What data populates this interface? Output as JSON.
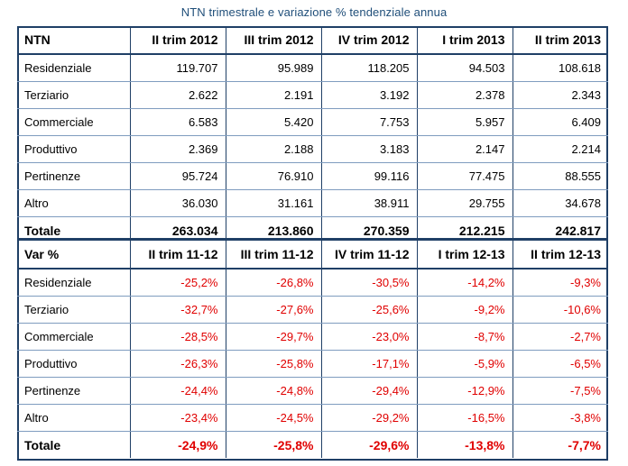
{
  "title": "NTN trimestrale e variazione % tendenziale annua",
  "ntn_table": {
    "header": [
      "NTN",
      "II trim 2012",
      "III trim 2012",
      "IV trim 2012",
      "I trim 2013",
      "II trim 2013"
    ],
    "rows": [
      {
        "label": "Residenziale",
        "values": [
          "119.707",
          "95.989",
          "118.205",
          "94.503",
          "108.618"
        ]
      },
      {
        "label": "Terziario",
        "values": [
          "2.622",
          "2.191",
          "3.192",
          "2.378",
          "2.343"
        ]
      },
      {
        "label": "Commerciale",
        "values": [
          "6.583",
          "5.420",
          "7.753",
          "5.957",
          "6.409"
        ]
      },
      {
        "label": "Produttivo",
        "values": [
          "2.369",
          "2.188",
          "3.183",
          "2.147",
          "2.214"
        ]
      },
      {
        "label": "Pertinenze",
        "values": [
          "95.724",
          "76.910",
          "99.116",
          "77.475",
          "88.555"
        ]
      },
      {
        "label": "Altro",
        "values": [
          "36.030",
          "31.161",
          "38.911",
          "29.755",
          "34.678"
        ]
      }
    ],
    "total": {
      "label": "Totale",
      "values": [
        "263.034",
        "213.860",
        "270.359",
        "212.215",
        "242.817"
      ]
    }
  },
  "var_table": {
    "header": [
      "Var %",
      "II trim 11-12",
      "III trim 11-12",
      "IV trim 11-12",
      "I trim 12-13",
      "II trim 12-13"
    ],
    "rows": [
      {
        "label": "Residenziale",
        "values": [
          "-25,2%",
          "-26,8%",
          "-30,5%",
          "-14,2%",
          "-9,3%"
        ]
      },
      {
        "label": "Terziario",
        "values": [
          "-32,7%",
          "-27,6%",
          "-25,6%",
          "-9,2%",
          "-10,6%"
        ]
      },
      {
        "label": "Commerciale",
        "values": [
          "-28,5%",
          "-29,7%",
          "-23,0%",
          "-8,7%",
          "-2,7%"
        ]
      },
      {
        "label": "Produttivo",
        "values": [
          "-26,3%",
          "-25,8%",
          "-17,1%",
          "-5,9%",
          "-6,5%"
        ]
      },
      {
        "label": "Pertinenze",
        "values": [
          "-24,4%",
          "-24,8%",
          "-29,4%",
          "-12,9%",
          "-7,5%"
        ]
      },
      {
        "label": "Altro",
        "values": [
          "-23,4%",
          "-24,5%",
          "-29,2%",
          "-16,5%",
          "-3,8%"
        ]
      }
    ],
    "total": {
      "label": "Totale",
      "values": [
        "-24,9%",
        "-25,8%",
        "-29,6%",
        "-13,8%",
        "-7,7%"
      ]
    }
  },
  "colors": {
    "title": "#1f4e79",
    "border": "#1f3f66",
    "negative": "#e00000"
  }
}
